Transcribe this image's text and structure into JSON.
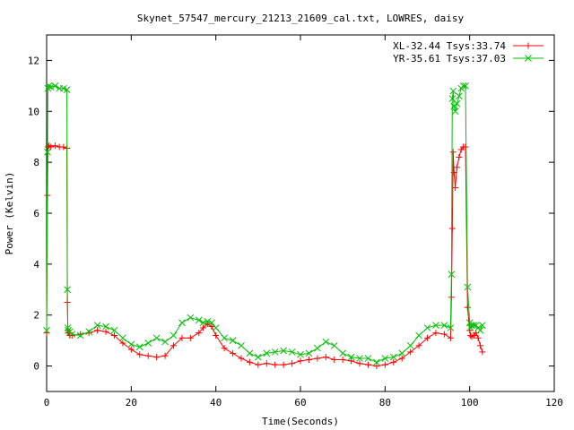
{
  "chart_data": {
    "type": "line",
    "title": "Skynet_57547_mercury_21213_21609_cal.txt, LOWRES, daisy",
    "xlabel": "Time(Seconds)",
    "ylabel": "Power (Kelvin)",
    "xlim": [
      0,
      120
    ],
    "ylim": [
      -1,
      13
    ],
    "xticks": [
      0,
      20,
      40,
      60,
      80,
      100,
      120
    ],
    "yticks": [
      0,
      2,
      4,
      6,
      8,
      10,
      12
    ],
    "xtick_labels": [
      "0",
      "20",
      "40",
      "60",
      "80",
      "100",
      "120"
    ],
    "ytick_labels": [
      "0",
      "2",
      "4",
      "6",
      "8",
      "10",
      "12"
    ],
    "grid": false,
    "legend_position": "top-right",
    "series": [
      {
        "name": "XL-32.44 Tsys:33.74",
        "color": "#ff0000",
        "marker": "plus",
        "x": [
          0,
          0.2,
          0.3,
          0.5,
          1,
          2,
          3,
          4,
          4.8,
          4.9,
          5.0,
          5.1,
          5.5,
          6,
          8,
          10,
          12,
          14,
          16,
          18,
          20,
          22,
          24,
          26,
          28,
          30,
          32,
          34,
          36,
          37,
          38,
          39,
          40,
          42,
          44,
          46,
          48,
          50,
          52,
          54,
          56,
          58,
          60,
          62,
          64,
          66,
          68,
          70,
          72,
          74,
          76,
          78,
          80,
          82,
          84,
          86,
          88,
          90,
          92,
          94,
          95.5,
          95.7,
          95.9,
          96.1,
          96.3,
          96.6,
          97,
          97.5,
          98,
          98.5,
          99,
          99.5,
          100,
          100.2,
          100.5,
          101,
          101.5,
          102,
          102.5,
          103
        ],
        "y": [
          1.3,
          6.7,
          8.6,
          8.65,
          8.6,
          8.65,
          8.6,
          8.6,
          8.55,
          2.5,
          1.4,
          1.3,
          1.2,
          1.2,
          1.25,
          1.3,
          1.4,
          1.35,
          1.2,
          0.9,
          0.65,
          0.45,
          0.4,
          0.35,
          0.4,
          0.8,
          1.1,
          1.1,
          1.3,
          1.5,
          1.65,
          1.55,
          1.2,
          0.7,
          0.5,
          0.3,
          0.15,
          0.05,
          0.1,
          0.05,
          0.05,
          0.1,
          0.2,
          0.25,
          0.3,
          0.35,
          0.25,
          0.25,
          0.2,
          0.1,
          0.05,
          0.0,
          0.05,
          0.15,
          0.3,
          0.55,
          0.8,
          1.1,
          1.3,
          1.25,
          1.1,
          2.7,
          5.4,
          8.4,
          7.6,
          7.0,
          7.8,
          8.2,
          8.5,
          8.6,
          8.6,
          2.3,
          1.4,
          1.2,
          1.15,
          1.2,
          1.3,
          1.1,
          0.8,
          0.55
        ]
      },
      {
        "name": "YR-35.61 Tsys:37.03",
        "color": "#00c000",
        "marker": "cross",
        "x": [
          0,
          0.2,
          0.3,
          0.5,
          1,
          2,
          3,
          4,
          4.8,
          4.9,
          5.0,
          5.1,
          5.5,
          6,
          8,
          10,
          12,
          14,
          16,
          18,
          20,
          22,
          24,
          26,
          28,
          30,
          32,
          34,
          36,
          37,
          38,
          39,
          40,
          42,
          44,
          46,
          48,
          50,
          52,
          54,
          56,
          58,
          60,
          62,
          64,
          66,
          68,
          70,
          72,
          74,
          76,
          78,
          80,
          82,
          84,
          86,
          88,
          90,
          92,
          94,
          95.5,
          95.7,
          95.9,
          96.1,
          96.3,
          96.6,
          97,
          97.5,
          98,
          98.5,
          99,
          99.5,
          100,
          100.2,
          100.5,
          101,
          101.5,
          102,
          102.5,
          103
        ],
        "y": [
          1.4,
          8.4,
          10.9,
          11.0,
          10.95,
          11.0,
          10.9,
          10.9,
          10.85,
          3.0,
          1.5,
          1.4,
          1.35,
          1.25,
          1.2,
          1.35,
          1.6,
          1.55,
          1.4,
          1.1,
          0.85,
          0.75,
          0.9,
          1.1,
          0.95,
          1.2,
          1.7,
          1.9,
          1.8,
          1.7,
          1.75,
          1.7,
          1.5,
          1.1,
          1.0,
          0.8,
          0.5,
          0.35,
          0.5,
          0.55,
          0.6,
          0.55,
          0.45,
          0.5,
          0.7,
          0.95,
          0.8,
          0.5,
          0.35,
          0.3,
          0.3,
          0.15,
          0.3,
          0.35,
          0.5,
          0.8,
          1.2,
          1.5,
          1.6,
          1.6,
          1.5,
          3.6,
          10.5,
          10.8,
          10.2,
          10.0,
          10.3,
          10.6,
          10.9,
          11.0,
          11.0,
          3.1,
          1.7,
          1.5,
          1.6,
          1.6,
          1.6,
          1.5,
          1.4,
          1.6
        ]
      }
    ]
  }
}
